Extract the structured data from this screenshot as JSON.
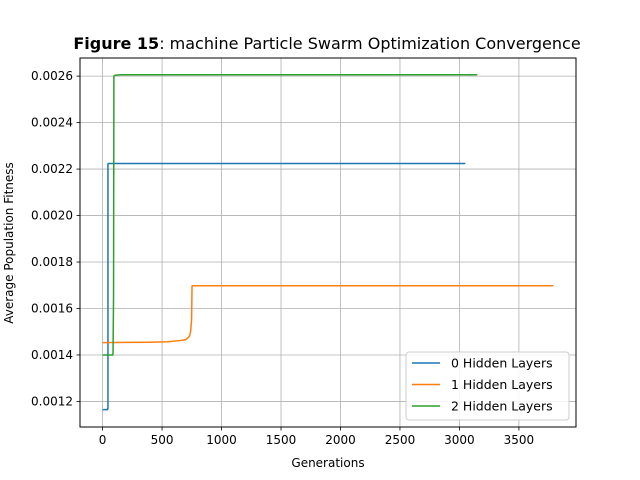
{
  "chart_data": {
    "type": "line",
    "title_bold": "Figure 15",
    "title_rest": ": machine Particle Swarm Optimization Convergence",
    "xlabel": "Generations",
    "ylabel": "Average Population Fitness",
    "xlim": [
      -190,
      3980
    ],
    "ylim": [
      0.00109,
      0.002678
    ],
    "xticks": [
      0,
      500,
      1000,
      1500,
      2000,
      2500,
      3000,
      3500
    ],
    "yticks": [
      0.0012,
      0.0014,
      0.0016,
      0.0018,
      0.002,
      0.0022,
      0.0024,
      0.0026
    ],
    "xtick_labels": [
      "0",
      "500",
      "1000",
      "1500",
      "2000",
      "2500",
      "3000",
      "3500"
    ],
    "ytick_labels": [
      "0.0012",
      "0.0014",
      "0.0016",
      "0.0018",
      "0.0020",
      "0.0022",
      "0.0024",
      "0.0026"
    ],
    "grid": true,
    "legend_position": "lower-right",
    "series": [
      {
        "name": "0 Hidden Layers",
        "color": "#1f77b4",
        "x": [
          0,
          42,
          42,
          45,
          45,
          48,
          3050
        ],
        "y": [
          0.001165,
          0.001165,
          0.00117,
          0.00117,
          0.002222,
          0.002224,
          0.002224
        ]
      },
      {
        "name": "1 Hidden Layers",
        "color": "#ff7f0e",
        "x": [
          0,
          200,
          400,
          550,
          650,
          700,
          730,
          740,
          748,
          752,
          760,
          3790
        ],
        "y": [
          0.001453,
          0.001454,
          0.001455,
          0.001457,
          0.001462,
          0.001466,
          0.00148,
          0.0015,
          0.00155,
          0.001697,
          0.001698,
          0.001698
        ]
      },
      {
        "name": "2 Hidden Layers",
        "color": "#2ca02c",
        "x": [
          0,
          85,
          88,
          88,
          92,
          95,
          100,
          150,
          3150
        ],
        "y": [
          0.0014,
          0.0014,
          0.00141,
          0.00142,
          0.00165,
          0.0026,
          0.002603,
          0.002606,
          0.002606
        ]
      }
    ]
  }
}
